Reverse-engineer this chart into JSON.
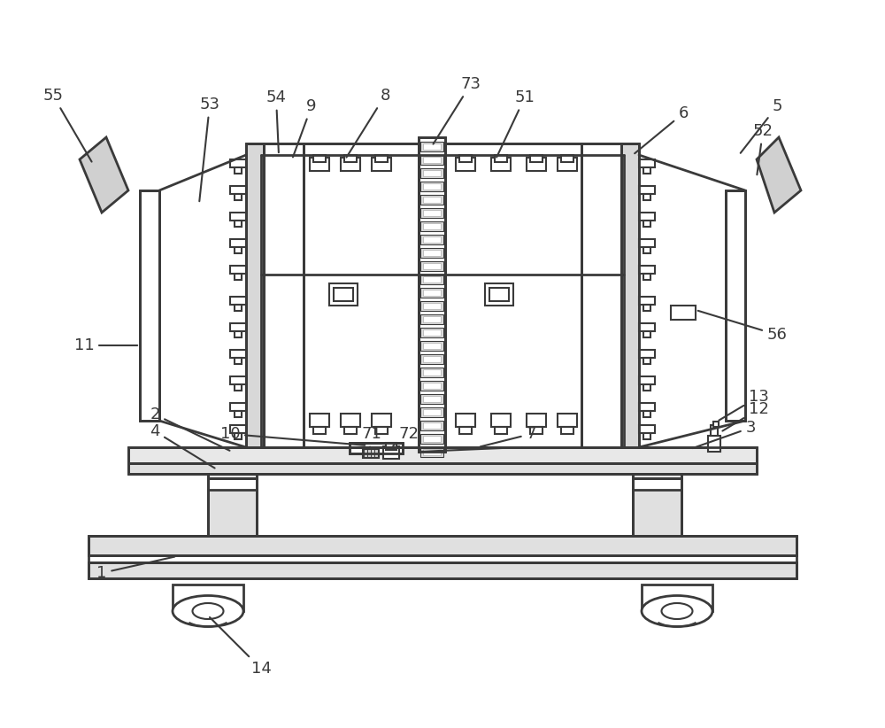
{
  "bg_color": "#ffffff",
  "lc": "#3a3a3a",
  "lw": 1.5,
  "lw_thick": 2.0
}
